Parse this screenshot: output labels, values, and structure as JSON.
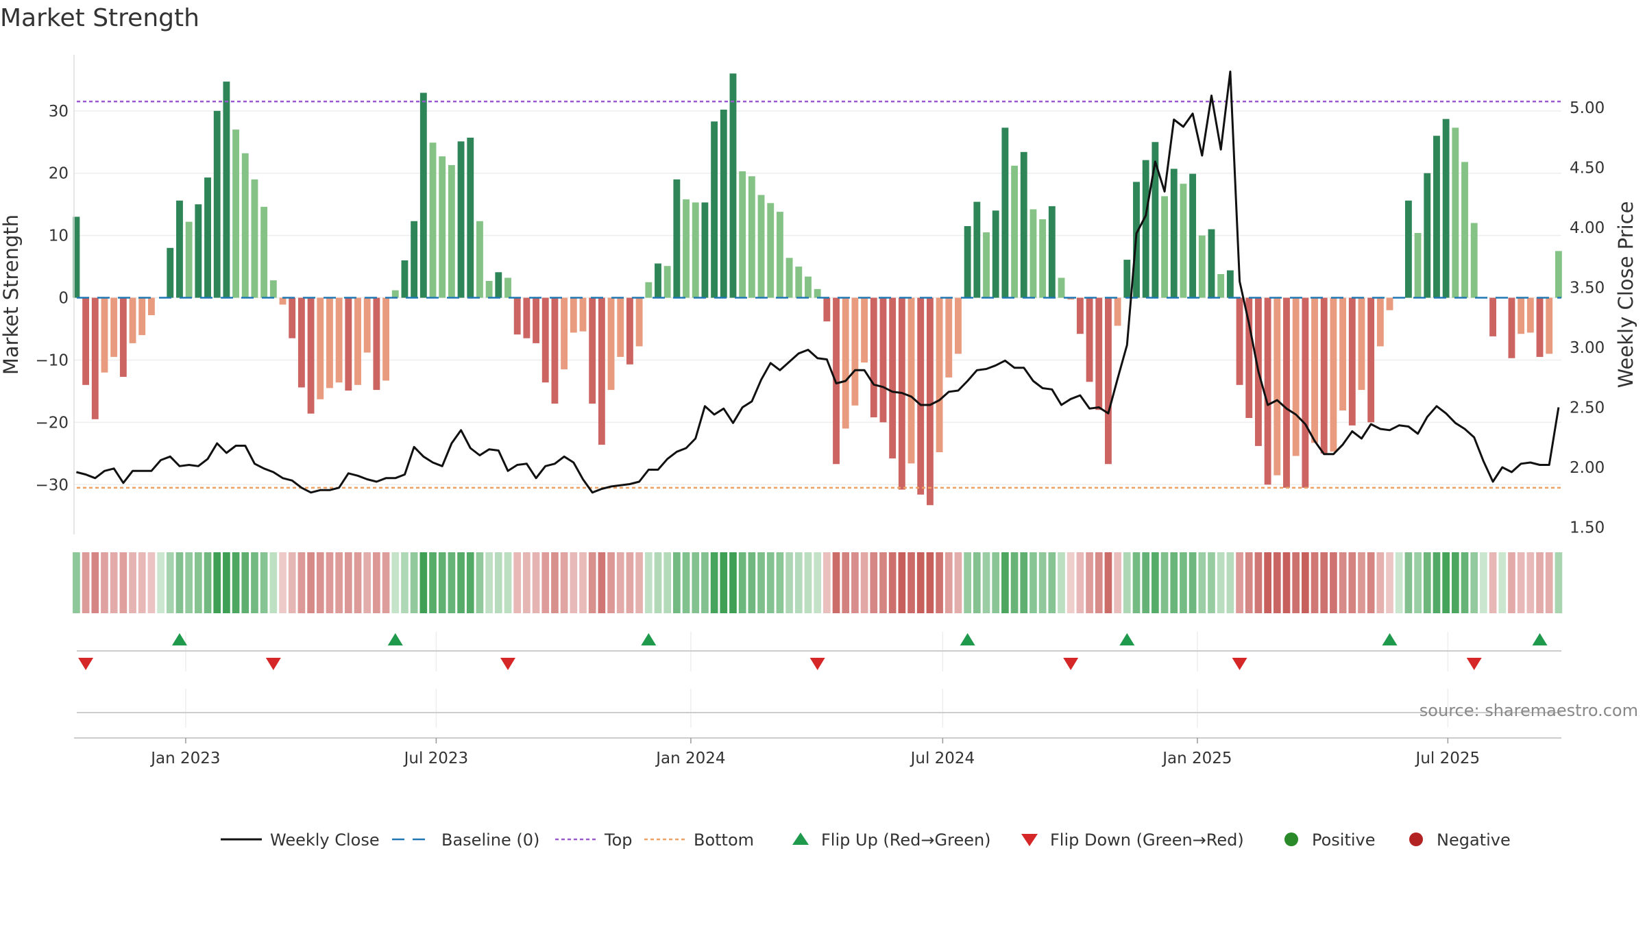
{
  "title": "Market Strength",
  "source": "source: sharemaestro.com",
  "colors": {
    "pos_strong": "#2e8558",
    "pos_weak": "#85c285",
    "neg_strong": "#cc6462",
    "neg_weak": "#e89b7e",
    "price_line": "#111111",
    "baseline": "#1f77b4",
    "top_line": "#9b59d0",
    "bottom_line": "#f0a060",
    "flip_up": "#1f9a4c",
    "flip_down": "#d62728",
    "positive_dot": "#2a8a2a",
    "negative_dot": "#b22222"
  },
  "chart_data": {
    "type": "bar",
    "title": "Market Strength",
    "ylabel": "Market Strength",
    "y2label": "Weekly Close Price",
    "ylim": [
      -38,
      39
    ],
    "y2lim": [
      1.44,
      5.44
    ],
    "yticks": [
      "30",
      "20",
      "10",
      "0",
      "−10",
      "−20",
      "−30"
    ],
    "yticks_values": [
      30,
      20,
      10,
      0,
      -10,
      -20,
      -30
    ],
    "y2ticks": [
      "5.00",
      "4.50",
      "4.00",
      "3.50",
      "3.00",
      "2.50",
      "2.00",
      "1.50"
    ],
    "y2ticks_values": [
      5.0,
      4.5,
      4.0,
      3.5,
      3.0,
      2.5,
      2.0,
      1.5
    ],
    "top_level": 31.5,
    "bottom_level": -30.5,
    "x_start": "2022-10-14",
    "x_end": "2025-09-19",
    "xticks": [
      {
        "label": "Jan 2023",
        "date": "2023-01-01"
      },
      {
        "label": "Jul 2023",
        "date": "2023-07-01"
      },
      {
        "label": "Jan 2024",
        "date": "2024-01-01"
      },
      {
        "label": "Jul 2024",
        "date": "2024-07-01"
      },
      {
        "label": "Jan 2025",
        "date": "2025-01-01"
      },
      {
        "label": "Jul 2025",
        "date": "2025-07-01"
      }
    ],
    "strength": [
      13,
      -14,
      -19.5,
      -12,
      -9.5,
      -12.7,
      -7.3,
      -6,
      -2.8,
      0,
      8,
      15.6,
      12.2,
      15,
      19.3,
      30,
      34.7,
      27,
      23.2,
      19,
      14.6,
      2.8,
      -1.1,
      -6.5,
      -14.4,
      -18.6,
      -16.3,
      -14.5,
      -13.6,
      -14.9,
      -14,
      -8.8,
      -14.8,
      -13.3,
      1.2,
      6,
      12.3,
      32.9,
      24.9,
      22.7,
      21.3,
      25.1,
      25.7,
      12.3,
      2.7,
      4.1,
      3.2,
      -5.9,
      -6.5,
      -7.3,
      -13.6,
      -17,
      -11.5,
      -5.6,
      -5.4,
      -17,
      -23.6,
      -14.8,
      -9.5,
      -10.7,
      -7.8,
      2.5,
      5.5,
      5.1,
      19,
      15.8,
      15.3,
      15.3,
      28.3,
      30.2,
      36,
      20.3,
      19.5,
      16.5,
      15.2,
      13.8,
      6.4,
      5,
      3.4,
      1.4,
      -3.8,
      -26.7,
      -21,
      -17.3,
      -10.4,
      -19.2,
      -20,
      -25.8,
      -30.8,
      -26.6,
      -31.6,
      -33.3,
      -24.8,
      -12.8,
      -9,
      11.5,
      15.4,
      10.5,
      14,
      27.3,
      21.2,
      23.4,
      14.2,
      12.6,
      14.7,
      3.2,
      -0.3,
      -5.8,
      -13.5,
      -18,
      -26.7,
      -4.5,
      6.1,
      18.6,
      22.1,
      25,
      16.3,
      20.7,
      18.3,
      19.9,
      10,
      11,
      3.8,
      4.4,
      -14,
      -19.3,
      -23.8,
      -30,
      -28.5,
      -30.5,
      -25.4,
      -30.5,
      -23.3,
      -25,
      -24.7,
      -18.1,
      -20.5,
      -14.8,
      -20,
      -7.8,
      -2,
      0,
      15.6,
      10.4,
      20,
      26,
      28.7,
      27.3,
      21.8,
      12,
      0,
      -6.2,
      0,
      -9.7,
      -5.8,
      -5.6,
      -9.5,
      -9,
      7.5
    ],
    "weekly_close": [
      1.96,
      1.94,
      1.91,
      1.97,
      1.99,
      1.87,
      1.97,
      1.97,
      1.97,
      2.06,
      2.09,
      2.01,
      2.02,
      2.01,
      2.07,
      2.2,
      2.12,
      2.18,
      2.18,
      2.03,
      1.99,
      1.96,
      1.91,
      1.89,
      1.83,
      1.79,
      1.81,
      1.81,
      1.83,
      1.95,
      1.93,
      1.9,
      1.88,
      1.91,
      1.91,
      1.94,
      2.17,
      2.09,
      2.04,
      2.01,
      2.2,
      2.31,
      2.16,
      2.1,
      2.15,
      2.14,
      1.97,
      2.02,
      2.03,
      1.91,
      2.01,
      2.03,
      2.09,
      2.04,
      1.9,
      1.79,
      1.82,
      1.84,
      1.85,
      1.86,
      1.88,
      1.98,
      1.98,
      2.07,
      2.13,
      2.16,
      2.24,
      2.51,
      2.44,
      2.49,
      2.37,
      2.5,
      2.55,
      2.73,
      2.87,
      2.81,
      2.88,
      2.95,
      2.98,
      2.91,
      2.9,
      2.7,
      2.72,
      2.81,
      2.81,
      2.69,
      2.67,
      2.63,
      2.62,
      2.59,
      2.52,
      2.52,
      2.56,
      2.63,
      2.64,
      2.72,
      2.81,
      2.82,
      2.85,
      2.89,
      2.83,
      2.83,
      2.72,
      2.66,
      2.65,
      2.52,
      2.57,
      2.6,
      2.49,
      2.5,
      2.45,
      2.74,
      3.02,
      3.95,
      4.1,
      4.55,
      4.3,
      4.9,
      4.84,
      4.95,
      4.6,
      5.1,
      4.65,
      5.3,
      3.55,
      3.2,
      2.8,
      2.52,
      2.56,
      2.49,
      2.44,
      2.36,
      2.22,
      2.11,
      2.11,
      2.19,
      2.3,
      2.24,
      2.36,
      2.32,
      2.31,
      2.35,
      2.34,
      2.28,
      2.42,
      2.51,
      2.45,
      2.37,
      2.32,
      2.25,
      2.05,
      1.88,
      2.0,
      1.96,
      2.03,
      2.04,
      2.02,
      2.02,
      2.5
    ],
    "flip_up_weeks": [
      11,
      34,
      61,
      95,
      112,
      140,
      156
    ],
    "flip_down_weeks": [
      1,
      21,
      46,
      79,
      106,
      124,
      149
    ],
    "heat_strip": "continuous-strength-colored",
    "legend": [
      {
        "label": "Weekly Close",
        "symbol": "line-solid"
      },
      {
        "label": "Baseline (0)",
        "symbol": "line-dashed"
      },
      {
        "label": "Top",
        "symbol": "line-dotted-purple"
      },
      {
        "label": "Bottom",
        "symbol": "line-dotted-orange"
      },
      {
        "label": "Flip Up (Red→Green)",
        "symbol": "triangle-up"
      },
      {
        "label": "Flip Down (Green→Red)",
        "symbol": "triangle-down"
      },
      {
        "label": "Positive",
        "symbol": "dot-green"
      },
      {
        "label": "Negative",
        "symbol": "dot-red"
      }
    ],
    "legend_position": "bottom-center"
  }
}
